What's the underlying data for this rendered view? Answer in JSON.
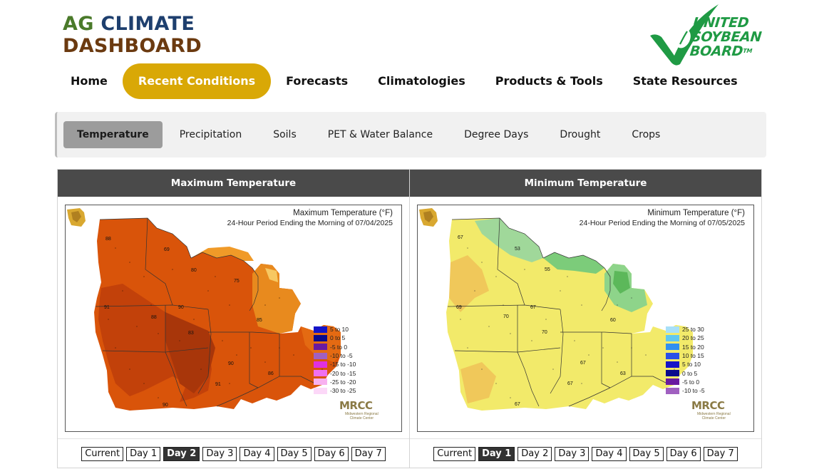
{
  "logo": {
    "line1_a": "AG",
    "line1_b": "CLIMATE",
    "line2": "DASHBOARD"
  },
  "partner_logo": {
    "line1": "UNITED",
    "line2": "SOYBEAN",
    "line3": "BOARD",
    "tm": "TM"
  },
  "main_nav": [
    {
      "label": "Home",
      "active": false
    },
    {
      "label": "Recent Conditions",
      "active": true
    },
    {
      "label": "Forecasts",
      "active": false
    },
    {
      "label": "Climatologies",
      "active": false
    },
    {
      "label": "Products & Tools",
      "active": false
    },
    {
      "label": "State Resources",
      "active": false
    }
  ],
  "sub_nav": [
    {
      "label": "Temperature",
      "active": true
    },
    {
      "label": "Precipitation",
      "active": false
    },
    {
      "label": "Soils",
      "active": false
    },
    {
      "label": "PET & Water Balance",
      "active": false
    },
    {
      "label": "Degree Days",
      "active": false
    },
    {
      "label": "Drought",
      "active": false
    },
    {
      "label": "Crops",
      "active": false
    }
  ],
  "panels": {
    "max": {
      "header": "Maximum Temperature",
      "map_title": "Maximum Temperature (°F)",
      "map_subtitle": "24-Hour Period Ending the Morning of 07/04/2025",
      "legend": [
        {
          "label": "5 to 10",
          "color": "#1414c8"
        },
        {
          "label": "0 to 5",
          "color": "#0a0a8c"
        },
        {
          "label": "-5 to 0",
          "color": "#6a1aa0"
        },
        {
          "label": "-10 to -5",
          "color": "#a060c0"
        },
        {
          "label": "-15 to -10",
          "color": "#e030e0"
        },
        {
          "label": "-20 to -15",
          "color": "#f070f0"
        },
        {
          "label": "-25 to -20",
          "color": "#f8b0f0"
        },
        {
          "label": "-30 to -25",
          "color": "#fcd8f8"
        }
      ],
      "map_labels": [
        "88",
        "69",
        "80",
        "75",
        "91",
        "88",
        "90",
        "85",
        "83",
        "90",
        "91",
        "86",
        "90"
      ],
      "days": [
        {
          "label": "Current",
          "active": false
        },
        {
          "label": "Day 1",
          "active": false
        },
        {
          "label": "Day 2",
          "active": true
        },
        {
          "label": "Day 3",
          "active": false
        },
        {
          "label": "Day 4",
          "active": false
        },
        {
          "label": "Day 5",
          "active": false
        },
        {
          "label": "Day 6",
          "active": false
        },
        {
          "label": "Day 7",
          "active": false
        }
      ]
    },
    "min": {
      "header": "Minimum Temperature",
      "map_title": "Minimum Temperature (°F)",
      "map_subtitle": "24-Hour Period Ending the Morning of 07/05/2025",
      "legend": [
        {
          "label": "25 to 30",
          "color": "#a8e0f8"
        },
        {
          "label": "20 to 25",
          "color": "#60c8f0"
        },
        {
          "label": "15 to 20",
          "color": "#3090f0"
        },
        {
          "label": "10 to 15",
          "color": "#2a50e8"
        },
        {
          "label": "5 to 10",
          "color": "#1414c8"
        },
        {
          "label": "0 to 5",
          "color": "#0a0a8c"
        },
        {
          "label": "-5 to 0",
          "color": "#6a1aa0"
        },
        {
          "label": "-10 to -5",
          "color": "#a060c0"
        }
      ],
      "map_labels": [
        "67",
        "53",
        "55",
        "69",
        "70",
        "67",
        "70",
        "60",
        "67",
        "63",
        "67",
        "67"
      ],
      "days": [
        {
          "label": "Current",
          "active": false
        },
        {
          "label": "Day 1",
          "active": true
        },
        {
          "label": "Day 2",
          "active": false
        },
        {
          "label": "Day 3",
          "active": false
        },
        {
          "label": "Day 4",
          "active": false
        },
        {
          "label": "Day 5",
          "active": false
        },
        {
          "label": "Day 6",
          "active": false
        },
        {
          "label": "Day 7",
          "active": false
        }
      ]
    }
  },
  "mrcc": {
    "name": "MRCC",
    "sub1": "Midwestern Regional",
    "sub2": "Climate Center"
  }
}
